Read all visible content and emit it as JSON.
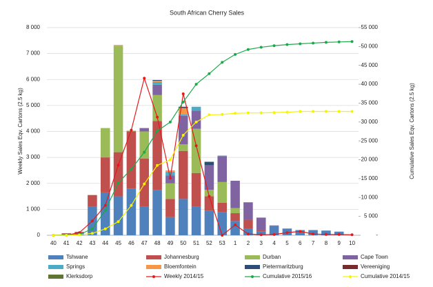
{
  "chart_data": {
    "type": "bar",
    "stacked": true,
    "title": "South African Cherry Sales",
    "y_label": "Weekly Sales Eqv. Cartons (2.5 kg)",
    "y2_label": "Cumulative Sales Eqv. Cartons (2.5 kg)",
    "categories": [
      "40",
      "41",
      "42",
      "43",
      "44",
      "45",
      "46",
      "47",
      "48",
      "49",
      "50",
      "51",
      "52",
      "53",
      "1",
      "2",
      "3",
      "4",
      "5",
      "6",
      "7",
      "8",
      "9",
      "10"
    ],
    "ylim": [
      0,
      8000
    ],
    "yticks": [
      0,
      {
        "value": 1000,
        "label": "1 000"
      },
      {
        "value": 2000,
        "label": "2 000"
      },
      {
        "value": 3000,
        "label": "3 000"
      },
      {
        "value": 4000,
        "label": "4 000"
      },
      {
        "value": 5000,
        "label": "5 000"
      },
      {
        "value": 6000,
        "label": "6 000"
      },
      {
        "value": 7000,
        "label": "7 000"
      },
      {
        "value": 8000,
        "label": "8 000"
      }
    ],
    "y2lim": [
      0,
      55000
    ],
    "y2ticks": [
      {
        "value": 0,
        "label": "-"
      },
      {
        "value": 5000,
        "label": "5 000"
      },
      {
        "value": 10000,
        "label": "10 000"
      },
      {
        "value": 15000,
        "label": "15 000"
      },
      {
        "value": 20000,
        "label": "20 000"
      },
      {
        "value": 25000,
        "label": "25 000"
      },
      {
        "value": 30000,
        "label": "30 000"
      },
      {
        "value": 35000,
        "label": "35 000"
      },
      {
        "value": 40000,
        "label": "40 000"
      },
      {
        "value": 45000,
        "label": "45 000"
      },
      {
        "value": 50000,
        "label": "50 000"
      },
      {
        "value": 55000,
        "label": "55 000"
      }
    ],
    "grid": true,
    "legend": "bottom",
    "series": [
      {
        "name": "Tshwane",
        "color": "#4f81bd",
        "values": [
          0,
          60,
          80,
          1100,
          1650,
          1500,
          1800,
          1100,
          1750,
          700,
          1400,
          1100,
          950,
          900,
          550,
          250,
          150,
          350,
          250,
          200,
          200,
          180,
          140,
          0
        ]
      },
      {
        "name": "Johannesburg",
        "color": "#c0504d",
        "values": [
          0,
          20,
          50,
          450,
          1350,
          1700,
          2200,
          1850,
          2650,
          700,
          1850,
          1300,
          550,
          350,
          300,
          350,
          50,
          0,
          0,
          0,
          0,
          0,
          0,
          0
        ]
      },
      {
        "name": "Durban",
        "color": "#9bbb59",
        "values": [
          0,
          0,
          0,
          0,
          1130,
          4100,
          30,
          1050,
          1000,
          600,
          250,
          1700,
          250,
          800,
          200,
          0,
          0,
          0,
          0,
          0,
          0,
          0,
          0,
          0
        ]
      },
      {
        "name": "Cape Town",
        "color": "#8064a2",
        "values": [
          0,
          0,
          0,
          0,
          0,
          0,
          0,
          130,
          400,
          300,
          1100,
          700,
          950,
          1000,
          1050,
          670,
          480,
          30,
          10,
          0,
          0,
          0,
          0,
          0
        ]
      },
      {
        "name": "Springs",
        "color": "#4bacc6",
        "values": [
          0,
          0,
          0,
          0,
          0,
          0,
          0,
          0,
          100,
          150,
          50,
          150,
          0,
          20,
          0,
          0,
          0,
          0,
          0,
          0,
          0,
          0,
          0,
          0
        ]
      },
      {
        "name": "Bloemfontein",
        "color": "#f79646",
        "values": [
          0,
          0,
          0,
          0,
          0,
          30,
          0,
          0,
          50,
          50,
          250,
          0,
          0,
          0,
          0,
          0,
          0,
          0,
          0,
          0,
          0,
          0,
          0,
          0
        ]
      },
      {
        "name": "Pietermaritzburg",
        "color": "#2c4d75",
        "values": [
          0,
          0,
          0,
          0,
          0,
          0,
          0,
          0,
          30,
          0,
          50,
          0,
          130,
          0,
          0,
          0,
          0,
          0,
          0,
          0,
          0,
          0,
          0,
          0
        ]
      },
      {
        "name": "Vereeniging",
        "color": "#772c2a",
        "values": [
          0,
          0,
          0,
          0,
          0,
          0,
          0,
          0,
          0,
          0,
          0,
          0,
          0,
          0,
          0,
          0,
          0,
          0,
          0,
          0,
          0,
          0,
          0,
          0
        ]
      },
      {
        "name": "Klerksdorp",
        "color": "#5f7530",
        "values": [
          0,
          0,
          0,
          0,
          0,
          0,
          0,
          0,
          0,
          0,
          0,
          0,
          0,
          0,
          0,
          0,
          0,
          0,
          0,
          0,
          0,
          0,
          0,
          0
        ]
      },
      {
        "name": "Weekly 2014/15",
        "type": "line",
        "color": "#e31a1c",
        "values": [
          0,
          0,
          100,
          550,
          1150,
          2700,
          4050,
          6050,
          4550,
          2200,
          5450,
          3450,
          1500,
          0,
          400,
          50,
          20,
          30,
          100,
          150,
          50,
          30,
          30,
          20
        ]
      },
      {
        "name": "Cumulative 2015/16",
        "type": "line",
        "axis": "y2",
        "color": "#1aaa4a",
        "values": [
          0,
          100,
          200,
          1700,
          6600,
          13900,
          17500,
          22000,
          27600,
          30000,
          35300,
          40000,
          42800,
          45800,
          47900,
          49200,
          49800,
          50200,
          50500,
          50700,
          50900,
          51100,
          51200,
          51300
        ]
      },
      {
        "name": "Cumulative 2014/15",
        "type": "line",
        "axis": "y2",
        "color": "#f5f500",
        "values": [
          0,
          0,
          100,
          500,
          1700,
          3600,
          7900,
          13600,
          18500,
          20000,
          26500,
          30000,
          31900,
          32000,
          32300,
          32400,
          32400,
          32500,
          32600,
          32800,
          32800,
          32800,
          32800,
          32800
        ]
      }
    ]
  }
}
